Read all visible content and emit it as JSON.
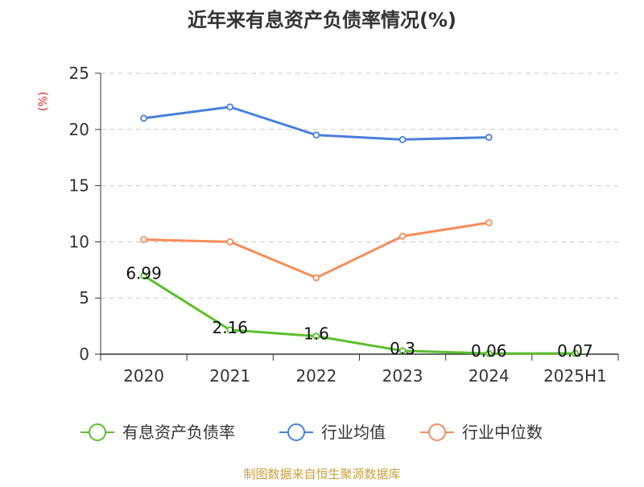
{
  "chart_data": {
    "type": "line",
    "title": "近年来有息资产负债率情况(%)",
    "ylabel": "(%)",
    "categories": [
      "2020",
      "2021",
      "2022",
      "2023",
      "2024",
      "2025H1"
    ],
    "y_ticks": [
      "0",
      "5",
      "10",
      "15",
      "20",
      "25"
    ],
    "ylim": [
      0,
      25
    ],
    "grid": "horizontal-dashed",
    "legend_position": "bottom",
    "series": [
      {
        "name": "有息资产负债率",
        "color": "#5bbf2a",
        "values": [
          6.99,
          2.16,
          1.6,
          0.3,
          0.06,
          0.07
        ],
        "labels": [
          "6.99",
          "2.16",
          "1.6",
          "0.3",
          "0.06",
          "0.07"
        ]
      },
      {
        "name": "行业均值",
        "color": "#4a7fdb",
        "values": [
          21.0,
          22.0,
          19.5,
          19.1,
          19.3,
          null
        ]
      },
      {
        "name": "行业中位数",
        "color": "#f78c5a",
        "values": [
          10.2,
          10.0,
          6.8,
          10.5,
          11.7,
          null
        ]
      }
    ],
    "unit_color": "#e02020"
  },
  "footer": {
    "source": "制图数据来自恒生聚源数据库",
    "color": "#c8a040"
  }
}
